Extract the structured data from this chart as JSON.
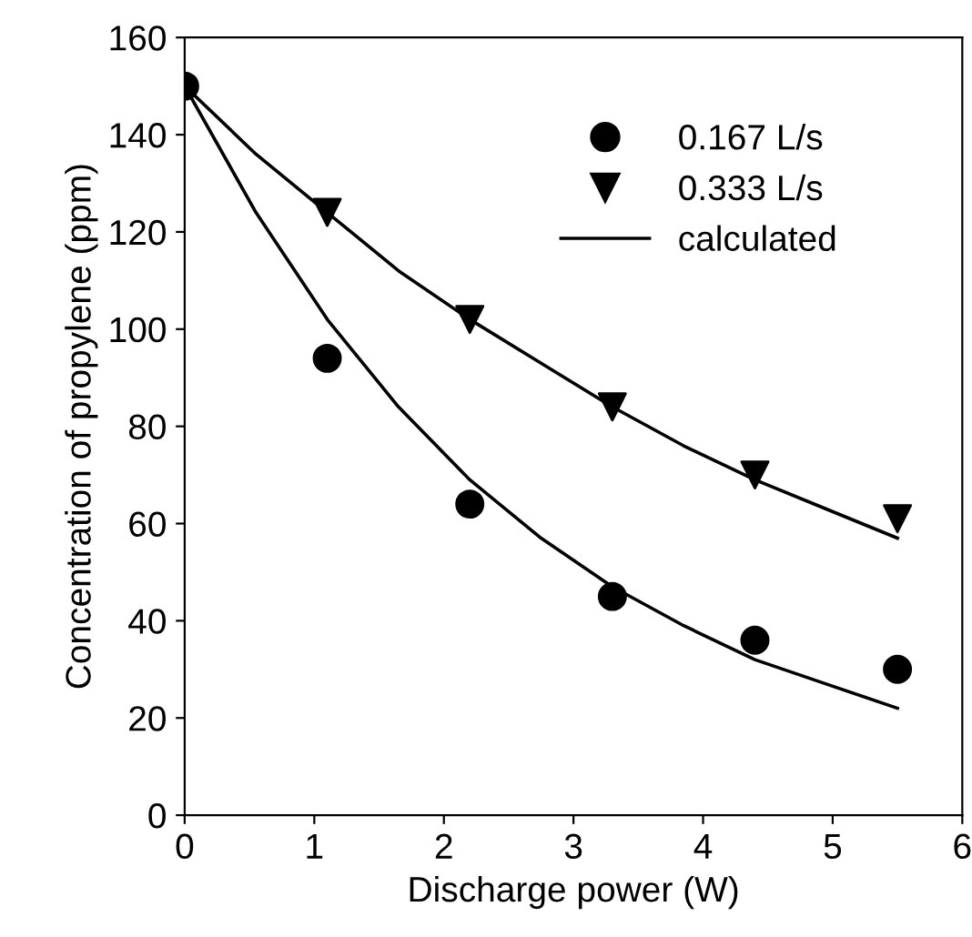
{
  "chart_data": {
    "type": "scatter",
    "xlabel": "Discharge power (W)",
    "ylabel": "Concentration of propylene (ppm)",
    "xlim": [
      0,
      6
    ],
    "ylim": [
      0,
      160
    ],
    "xticks": [
      0,
      1,
      2,
      3,
      4,
      5,
      6
    ],
    "yticks": [
      0,
      20,
      40,
      60,
      80,
      100,
      120,
      140,
      160
    ],
    "grid": false,
    "legend": "top right",
    "series": [
      {
        "name": "0.167 L/s",
        "marker": "circle",
        "color": "#000000",
        "x": [
          0,
          1.1,
          2.2,
          3.3,
          4.4,
          5.5
        ],
        "values": [
          150,
          94,
          64,
          45,
          36,
          30
        ]
      },
      {
        "name": "0.333 L/s",
        "marker": "triangle",
        "color": "#000000",
        "x": [
          1.1,
          2.2,
          3.3,
          4.4,
          5.5
        ],
        "values": [
          124,
          102,
          84,
          70,
          61
        ]
      },
      {
        "name": "calculated",
        "type": "line",
        "marker": "none",
        "line_style": "solid",
        "color": "#000000",
        "x": [
          0,
          0.55,
          1.1,
          1.65,
          2.2,
          2.75,
          3.3,
          3.85,
          4.4,
          4.95,
          5.5
        ],
        "values": [
          150,
          124,
          102,
          84,
          69,
          57,
          47,
          39,
          32,
          27,
          22
        ]
      },
      {
        "type": "line",
        "marker": "none",
        "line_style": "solid",
        "color": "#000000",
        "x": [
          0,
          0.55,
          1.1,
          1.65,
          2.2,
          2.75,
          3.3,
          3.85,
          4.4,
          4.95,
          5.5
        ],
        "values": [
          150,
          136,
          124,
          112,
          102,
          93,
          84,
          76,
          69,
          63,
          57
        ]
      }
    ]
  }
}
